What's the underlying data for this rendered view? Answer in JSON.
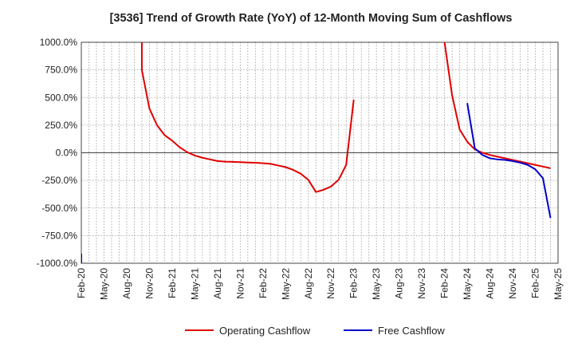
{
  "chart_data": {
    "type": "line",
    "title": "[3536]  Trend of Growth Rate (YoY) of 12-Month Moving Sum of Cashflows",
    "xlabel": "",
    "ylabel": "",
    "ylim": [
      -1000,
      1000
    ],
    "y_ticks": [
      1000,
      750,
      500,
      250,
      0,
      -250,
      -500,
      -750,
      -1000
    ],
    "y_tick_labels": [
      "1000.0%",
      "750.0%",
      "500.0%",
      "250.0%",
      "0.0%",
      "-250.0%",
      "-500.0%",
      "-750.0%",
      "-1000.0%"
    ],
    "x_range": [
      "2020-02",
      "2025-05"
    ],
    "x_tick_labels": [
      "Feb-20",
      "May-20",
      "Aug-20",
      "Nov-20",
      "Feb-21",
      "May-21",
      "Aug-21",
      "Nov-21",
      "Feb-22",
      "May-22",
      "Aug-22",
      "Nov-22",
      "Feb-23",
      "May-23",
      "Aug-23",
      "Nov-23",
      "Feb-24",
      "May-24",
      "Aug-24",
      "Nov-24",
      "Feb-25",
      "May-25"
    ],
    "grid": true,
    "legend_position": "bottom-center",
    "series": [
      {
        "name": "Operating Cashflow",
        "color": "#e00000",
        "points": [
          [
            "2020-10",
            1000
          ],
          [
            "2020-10",
            750
          ],
          [
            "2020-11",
            400
          ],
          [
            "2020-12",
            250
          ],
          [
            "2021-01",
            160
          ],
          [
            "2021-02",
            110
          ],
          [
            "2021-03",
            50
          ],
          [
            "2021-04",
            5
          ],
          [
            "2021-05",
            -25
          ],
          [
            "2021-06",
            -45
          ],
          [
            "2021-07",
            -60
          ],
          [
            "2021-08",
            -75
          ],
          [
            "2021-09",
            -80
          ],
          [
            "2021-10",
            -82
          ],
          [
            "2021-11",
            -85
          ],
          [
            "2021-12",
            -88
          ],
          [
            "2022-01",
            -90
          ],
          [
            "2022-02",
            -95
          ],
          [
            "2022-03",
            -100
          ],
          [
            "2022-04",
            -115
          ],
          [
            "2022-05",
            -130
          ],
          [
            "2022-06",
            -155
          ],
          [
            "2022-07",
            -190
          ],
          [
            "2022-08",
            -245
          ],
          [
            "2022-09",
            -355
          ],
          [
            "2022-10",
            -335
          ],
          [
            "2022-11",
            -305
          ],
          [
            "2022-12",
            -245
          ],
          [
            "2023-01",
            -110
          ],
          [
            "2023-02",
            480
          ]
        ],
        "points_after_gap": [
          [
            "2024-02",
            1000
          ],
          [
            "2024-03",
            520
          ],
          [
            "2024-04",
            210
          ],
          [
            "2024-05",
            100
          ],
          [
            "2024-06",
            30
          ],
          [
            "2024-07",
            0
          ],
          [
            "2024-08",
            -20
          ],
          [
            "2024-09",
            -35
          ],
          [
            "2024-10",
            -50
          ],
          [
            "2024-11",
            -65
          ],
          [
            "2024-12",
            -80
          ],
          [
            "2025-01",
            -95
          ],
          [
            "2025-02",
            -110
          ],
          [
            "2025-03",
            -125
          ],
          [
            "2025-04",
            -140
          ]
        ]
      },
      {
        "name": "Free Cashflow",
        "color": "#0000cc",
        "points": [
          [
            "2020-02",
            -1000
          ]
        ],
        "points_after_gap": [
          [
            "2024-05",
            450
          ],
          [
            "2024-06",
            40
          ],
          [
            "2024-07",
            -20
          ],
          [
            "2024-08",
            -50
          ],
          [
            "2024-09",
            -60
          ],
          [
            "2024-10",
            -65
          ],
          [
            "2024-11",
            -75
          ],
          [
            "2024-12",
            -90
          ],
          [
            "2025-01",
            -110
          ],
          [
            "2025-02",
            -150
          ],
          [
            "2025-03",
            -230
          ],
          [
            "2025-04",
            -590
          ]
        ]
      }
    ]
  }
}
